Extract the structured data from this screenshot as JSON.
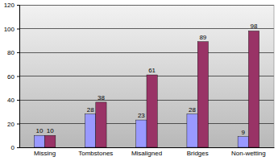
{
  "chart_data": {
    "type": "bar",
    "categories": [
      "Missing",
      "Tombstones",
      "Misaligned",
      "Bridges",
      "Non-wetting"
    ],
    "series": [
      {
        "color": "#9999ff",
        "values": [
          10,
          28,
          23,
          28,
          9
        ]
      },
      {
        "color": "#993366",
        "values": [
          10,
          38,
          61,
          89,
          98
        ]
      }
    ],
    "ylim": [
      0,
      120
    ],
    "yticks": [
      0,
      20,
      40,
      60,
      80,
      100,
      120
    ],
    "grid": true,
    "data_labels": true
  }
}
